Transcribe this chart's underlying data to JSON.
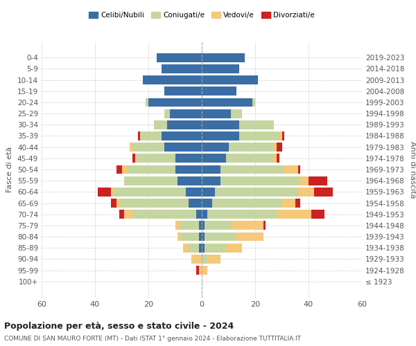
{
  "age_groups": [
    "100+",
    "95-99",
    "90-94",
    "85-89",
    "80-84",
    "75-79",
    "70-74",
    "65-69",
    "60-64",
    "55-59",
    "50-54",
    "45-49",
    "40-44",
    "35-39",
    "30-34",
    "25-29",
    "20-24",
    "15-19",
    "10-14",
    "5-9",
    "0-4"
  ],
  "birth_years": [
    "≤ 1923",
    "1924-1928",
    "1929-1933",
    "1934-1938",
    "1939-1943",
    "1944-1948",
    "1949-1953",
    "1954-1958",
    "1959-1963",
    "1964-1968",
    "1969-1973",
    "1974-1978",
    "1979-1983",
    "1984-1988",
    "1989-1993",
    "1994-1998",
    "1999-2003",
    "2004-2008",
    "2009-2013",
    "2014-2018",
    "2019-2023"
  ],
  "colors": {
    "celibi": "#3a6ea5",
    "coniugati": "#c5d5a0",
    "vedovi": "#f5c87a",
    "divorziati": "#cc2222"
  },
  "males": {
    "celibi": [
      0,
      0,
      0,
      1,
      1,
      1,
      2,
      5,
      6,
      9,
      10,
      10,
      14,
      15,
      13,
      12,
      20,
      14,
      22,
      15,
      17
    ],
    "coniugati": [
      0,
      0,
      0,
      4,
      7,
      7,
      24,
      26,
      27,
      20,
      18,
      15,
      12,
      8,
      5,
      2,
      1,
      0,
      0,
      0,
      0
    ],
    "vedovi": [
      0,
      1,
      4,
      2,
      1,
      2,
      3,
      1,
      1,
      0,
      2,
      0,
      1,
      0,
      0,
      0,
      0,
      0,
      0,
      0,
      0
    ],
    "divorziati": [
      0,
      1,
      0,
      0,
      0,
      0,
      2,
      2,
      5,
      0,
      2,
      1,
      0,
      1,
      0,
      0,
      0,
      0,
      0,
      0,
      0
    ]
  },
  "females": {
    "celibi": [
      0,
      0,
      0,
      1,
      1,
      1,
      2,
      4,
      5,
      7,
      7,
      9,
      10,
      14,
      14,
      11,
      19,
      13,
      21,
      14,
      16
    ],
    "coniugati": [
      0,
      0,
      2,
      8,
      12,
      10,
      26,
      26,
      31,
      30,
      24,
      18,
      17,
      15,
      13,
      4,
      1,
      0,
      0,
      0,
      0
    ],
    "vedovi": [
      0,
      2,
      5,
      6,
      10,
      12,
      13,
      5,
      6,
      3,
      5,
      1,
      1,
      1,
      0,
      0,
      0,
      0,
      0,
      0,
      0
    ],
    "divorziati": [
      0,
      0,
      0,
      0,
      0,
      1,
      5,
      2,
      7,
      7,
      1,
      1,
      2,
      1,
      0,
      0,
      0,
      0,
      0,
      0,
      0
    ]
  },
  "title": "Popolazione per età, sesso e stato civile - 2024",
  "subtitle": "COMUNE DI SAN MAURO FORTE (MT) - Dati ISTAT 1° gennaio 2024 - Elaborazione TUTTITALIA.IT",
  "ylabel_left": "Fasce di età",
  "ylabel_right": "Anni di nascita",
  "xlim": 60,
  "legend_labels": [
    "Celibi/Nubili",
    "Coniugati/e",
    "Vedovi/e",
    "Divorziati/e"
  ],
  "background_color": "#ffffff",
  "grid_color": "#cccccc"
}
